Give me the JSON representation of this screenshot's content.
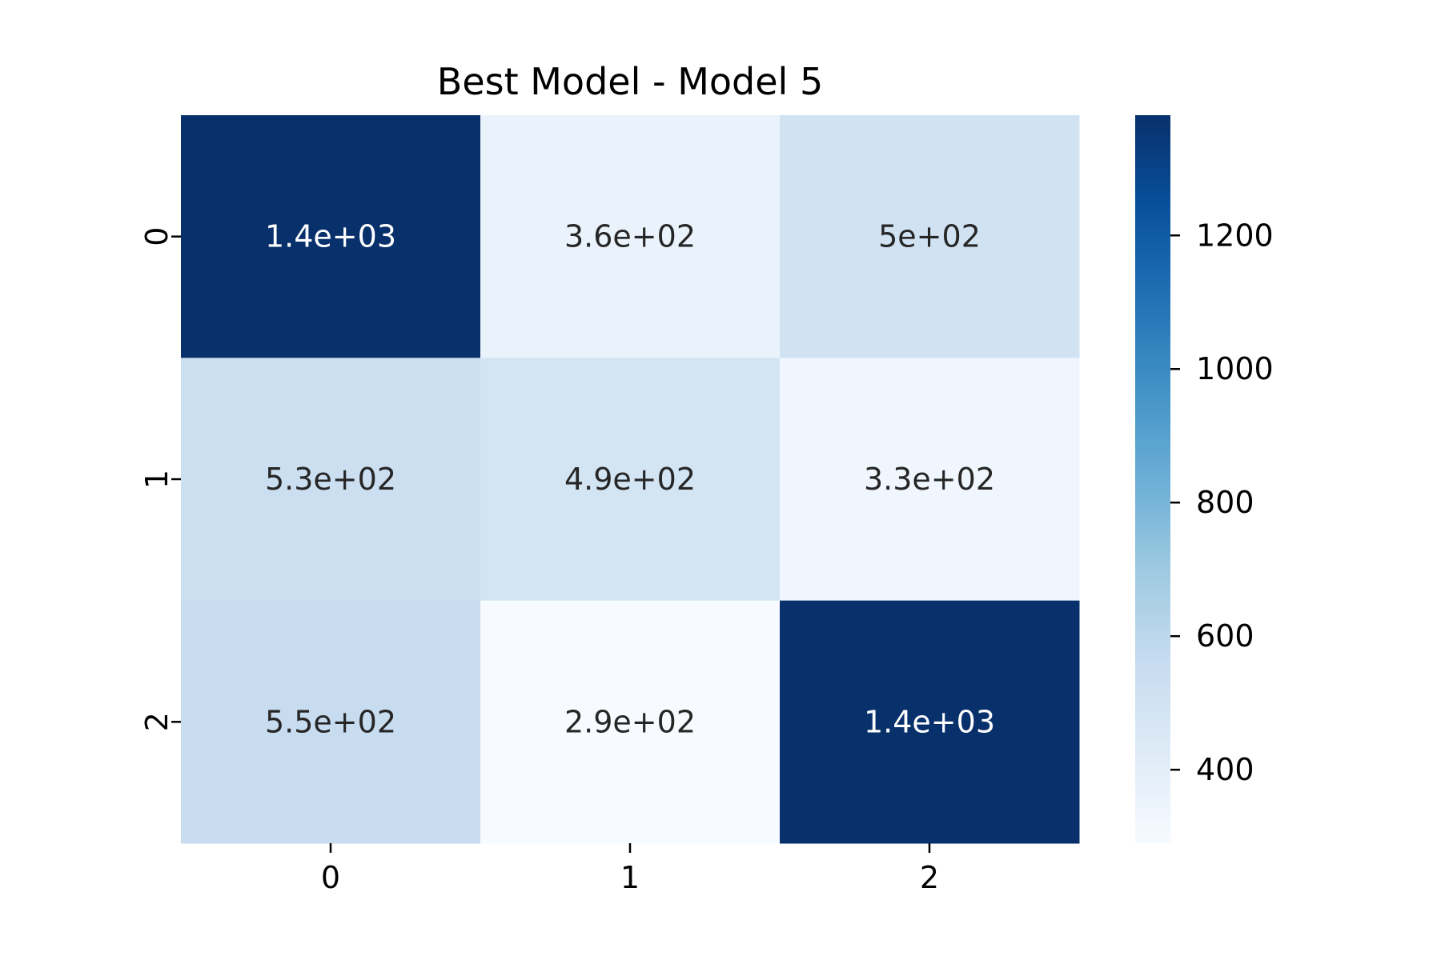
{
  "chart_data": {
    "type": "heatmap",
    "title": "Best Model - Model 5",
    "xlabel": "",
    "ylabel": "",
    "x_categories": [
      "0",
      "1",
      "2"
    ],
    "y_categories": [
      "0",
      "1",
      "2"
    ],
    "values": [
      [
        1380,
        360,
        500
      ],
      [
        530,
        490,
        330
      ],
      [
        550,
        290,
        1380
      ]
    ],
    "annotations": [
      [
        "1.4e+03",
        "3.6e+02",
        "5e+02"
      ],
      [
        "5.3e+02",
        "4.9e+02",
        "3.3e+02"
      ],
      [
        "5.5e+02",
        "2.9e+02",
        "1.4e+03"
      ]
    ],
    "colormap": "Blues",
    "colorbar": {
      "range": [
        290,
        1380
      ],
      "ticks": [
        400,
        600,
        800,
        1000,
        1200
      ],
      "tick_labels": [
        "400",
        "600",
        "800",
        "1000",
        "1200"
      ]
    },
    "grid": false
  }
}
